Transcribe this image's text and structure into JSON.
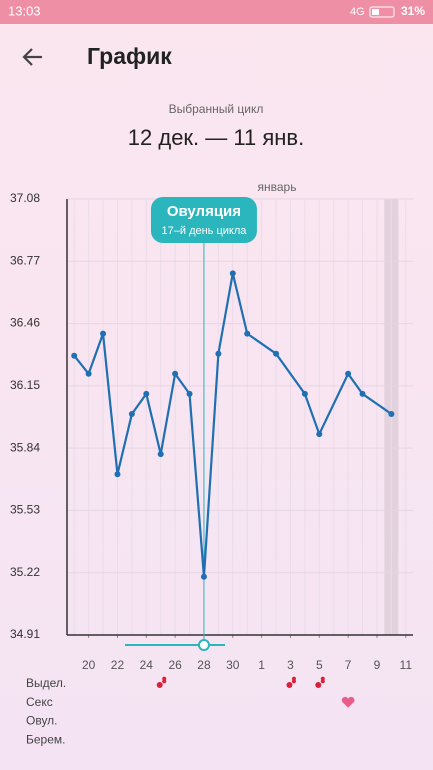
{
  "status_bar": {
    "time": "13:03",
    "network": "4G",
    "battery": "31%"
  },
  "header": {
    "title": "График"
  },
  "cycle": {
    "caption": "Выбранный цикл",
    "range": "12 дек. — 11 янв."
  },
  "chart_data": {
    "type": "line",
    "month_label": "январь",
    "color": "#1f6fb2",
    "grid": true,
    "x": [
      19,
      20,
      21,
      22,
      23,
      24,
      25,
      26,
      27,
      28,
      29,
      30,
      31,
      33,
      35,
      36,
      38,
      39,
      41
    ],
    "values": [
      36.3,
      36.21,
      36.41,
      35.71,
      36.01,
      36.11,
      35.81,
      36.21,
      36.11,
      35.2,
      36.31,
      36.71,
      36.41,
      36.31,
      36.11,
      35.91,
      36.21,
      36.11,
      36.01
    ],
    "xlim": [
      18.5,
      42.5
    ],
    "xticks": [
      20,
      22,
      24,
      26,
      28,
      30,
      {
        "value": 32,
        "label": "1"
      },
      {
        "value": 34,
        "label": "3"
      },
      {
        "value": 36,
        "label": "5"
      },
      {
        "value": 38,
        "label": "7"
      },
      {
        "value": 40,
        "label": "9"
      },
      {
        "value": 42,
        "label": "11"
      }
    ],
    "ylim": [
      34.91,
      37.08
    ],
    "yticks": [
      34.91,
      35.22,
      35.53,
      35.84,
      36.15,
      36.46,
      36.77,
      37.08
    ],
    "highlight_x": 41,
    "ovulation": {
      "x": 28,
      "title": "Овуляция",
      "subtitle": "17–й день цикла",
      "color": "#2bb5bd"
    },
    "rows": [
      {
        "label": "Выдел.",
        "x": [
          25,
          34,
          36
        ]
      },
      {
        "label": "Секс",
        "x": [
          38
        ]
      },
      {
        "label": "Овул.",
        "x": []
      },
      {
        "label": "Берем.",
        "x": []
      }
    ]
  }
}
